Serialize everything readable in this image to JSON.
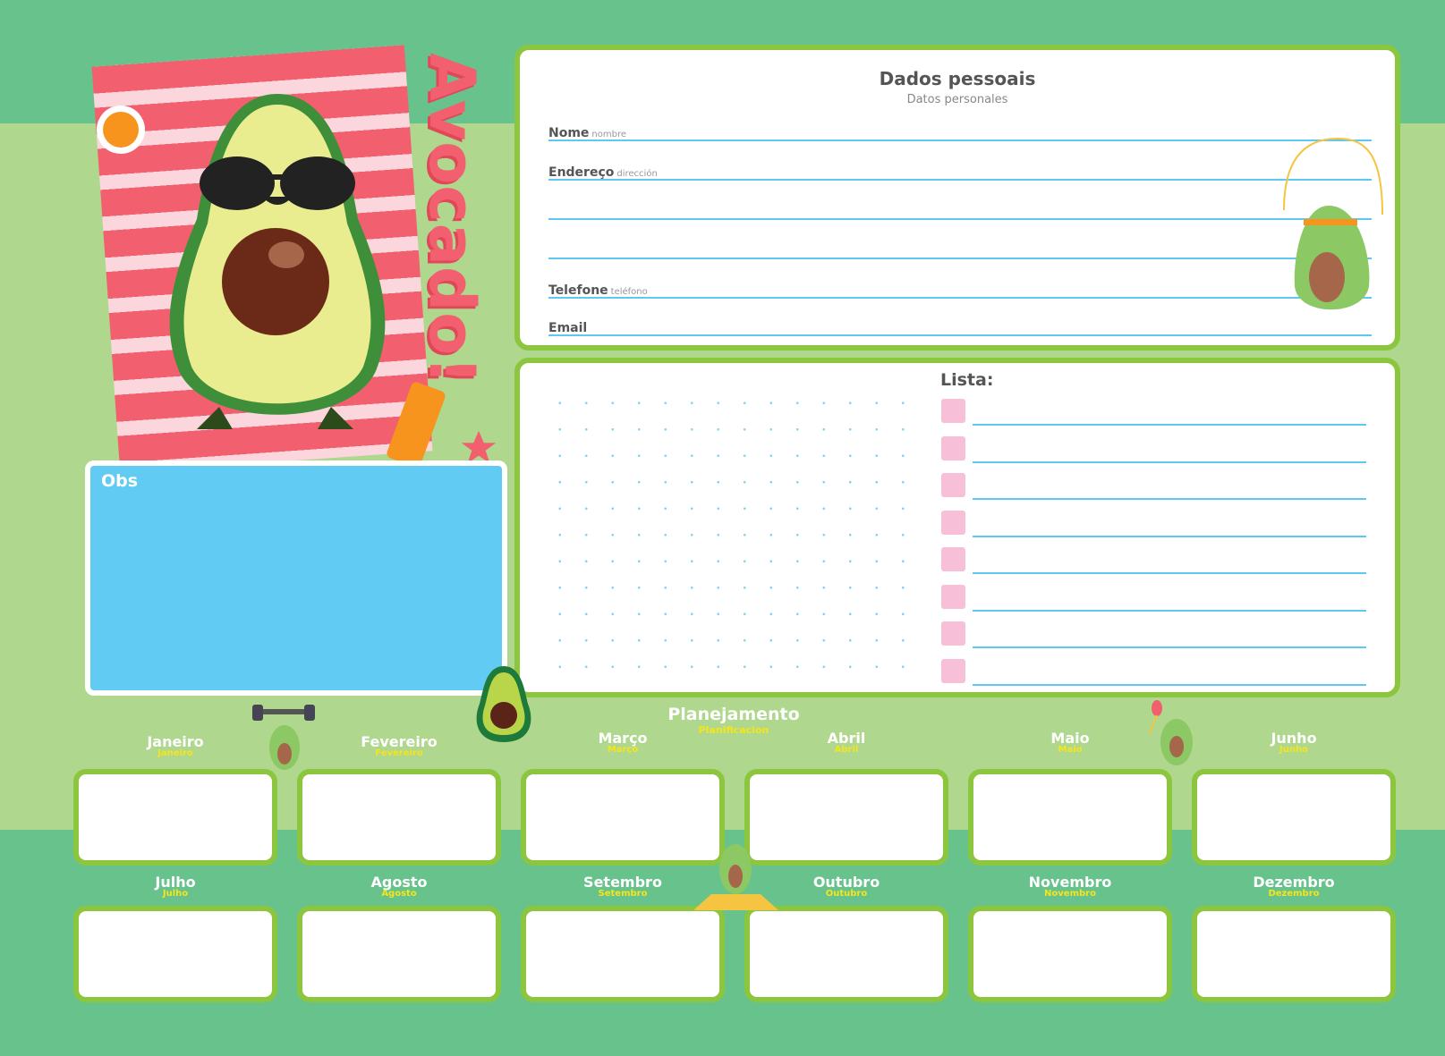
{
  "brand": {
    "title": "Avocado!"
  },
  "personal": {
    "title": "Dados pessoais",
    "subtitle": "Datos personales",
    "fields": [
      {
        "label": "Nome",
        "sub": "nombre"
      },
      {
        "label": "Endereço",
        "sub": "dirección"
      },
      {
        "label": "",
        "sub": ""
      },
      {
        "label": "",
        "sub": ""
      },
      {
        "label": "Telefone",
        "sub": "teléfono"
      },
      {
        "label": "Email",
        "sub": ""
      }
    ]
  },
  "lista": {
    "title": "Lista:",
    "items": 8
  },
  "obs": {
    "label": "Obs"
  },
  "planning": {
    "title": "Planejamento",
    "subtitle": "Planificacion",
    "months": [
      {
        "name": "Janeiro",
        "sub": "Janeiro"
      },
      {
        "name": "Fevereiro",
        "sub": "Fevereiro"
      },
      {
        "name": "Março",
        "sub": "Março"
      },
      {
        "name": "Abril",
        "sub": "Abril"
      },
      {
        "name": "Maio",
        "sub": "Maio"
      },
      {
        "name": "Junho",
        "sub": "Junho"
      },
      {
        "name": "Julho",
        "sub": "Julho"
      },
      {
        "name": "Agosto",
        "sub": "Agosto"
      },
      {
        "name": "Setembro",
        "sub": "Setembro"
      },
      {
        "name": "Outubro",
        "sub": "Outubro"
      },
      {
        "name": "Novembro",
        "sub": "Novembro"
      },
      {
        "name": "Dezembro",
        "sub": "Dezembro"
      }
    ]
  },
  "colors": {
    "dark_green": "#67c28c",
    "light_green": "#afd78e",
    "border_green": "#8cc63f",
    "blue": "#62cbf3",
    "pink": "#f2606f",
    "yellow": "#f5e51d"
  }
}
